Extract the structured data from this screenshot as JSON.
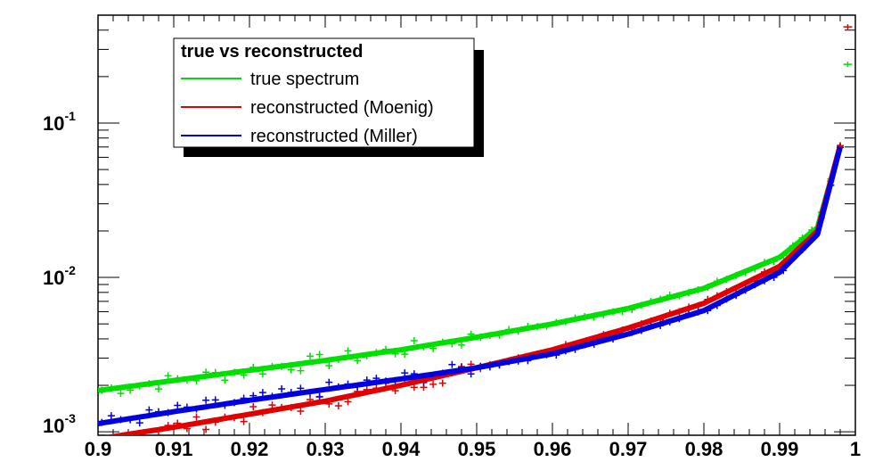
{
  "chart_data": {
    "type": "line",
    "title": "",
    "xlabel": "",
    "ylabel": "",
    "xlim": [
      0.9,
      1.0
    ],
    "ylim": [
      0.00095,
      0.5
    ],
    "yscale": "log",
    "grid": false,
    "x_ticks": [
      "0.9",
      "0.91",
      "0.92",
      "0.93",
      "0.94",
      "0.95",
      "0.96",
      "0.97",
      "0.98",
      "0.99",
      "1"
    ],
    "y_ticks": [
      {
        "base": "10",
        "exp": "-3"
      },
      {
        "base": "10",
        "exp": "-2"
      },
      {
        "base": "10",
        "exp": "-1"
      }
    ],
    "legend": {
      "title": "true vs reconstructed",
      "position": "top-left",
      "entries": [
        "true spectrum",
        "reconstructed (Moenig)",
        "reconstructed (Miller)"
      ]
    },
    "colors": {
      "true": "#00e000",
      "moenig": "#e00000",
      "miller": "#0000e0"
    },
    "series": [
      {
        "name": "true spectrum",
        "color": "#00e000",
        "x": [
          0.9,
          0.91,
          0.92,
          0.93,
          0.94,
          0.95,
          0.96,
          0.97,
          0.98,
          0.99,
          0.995,
          0.998
        ],
        "values": [
          0.00185,
          0.00215,
          0.0025,
          0.0029,
          0.0034,
          0.0041,
          0.005,
          0.0063,
          0.0085,
          0.0135,
          0.021,
          0.07
        ]
      },
      {
        "name": "reconstructed (Moenig)",
        "color": "#e00000",
        "x": [
          0.9,
          0.91,
          0.92,
          0.93,
          0.94,
          0.95,
          0.96,
          0.97,
          0.98,
          0.99,
          0.995,
          0.998
        ],
        "values": [
          0.0009,
          0.00107,
          0.0013,
          0.00158,
          0.002,
          0.0026,
          0.0034,
          0.0047,
          0.0068,
          0.0118,
          0.02,
          0.072
        ]
      },
      {
        "name": "reconstructed (Miller)",
        "color": "#0000e0",
        "x": [
          0.9,
          0.91,
          0.92,
          0.93,
          0.94,
          0.95,
          0.96,
          0.97,
          0.98,
          0.99,
          0.995,
          0.998
        ],
        "values": [
          0.00113,
          0.00135,
          0.0016,
          0.00188,
          0.0022,
          0.0026,
          0.0032,
          0.0043,
          0.0061,
          0.0108,
          0.019,
          0.07
        ]
      }
    ],
    "edge_markers": [
      {
        "series": "true spectrum",
        "x": 0.999,
        "value": 0.24
      },
      {
        "series": "reconstructed (Moenig)",
        "x": 0.999,
        "value": 0.42
      }
    ]
  }
}
